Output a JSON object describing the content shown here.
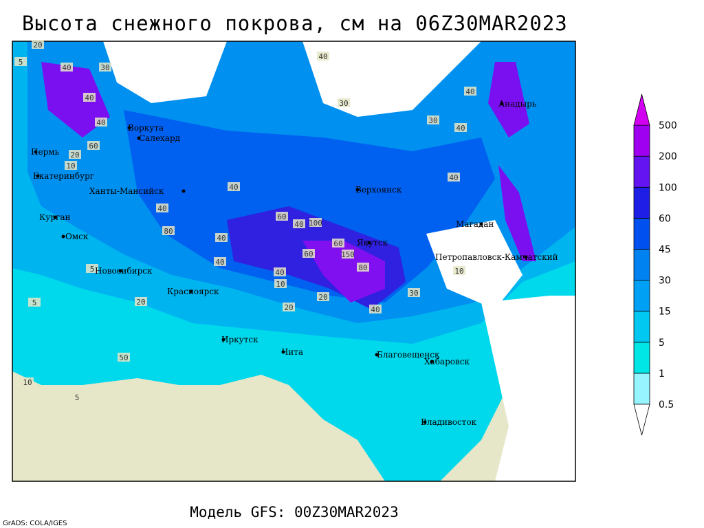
{
  "header": {
    "title": "Высота снежного покрова, см на 06Z30MAR2023"
  },
  "footer": {
    "model": "Модель GFS: 00Z30MAR2023",
    "credit": "GrADS: COLA/IGES"
  },
  "legend": {
    "levels": [
      0.5,
      1,
      5,
      15,
      30,
      45,
      60,
      100,
      200,
      500
    ],
    "colors": [
      "#ffffff",
      "#96f5ff",
      "#00e6e6",
      "#00c8f0",
      "#00a0f5",
      "#0082f0",
      "#0050f0",
      "#1e1ee6",
      "#6414f0",
      "#a000f0",
      "#d200f0"
    ]
  },
  "map": {
    "cities": [
      "Воркута",
      "Салехард",
      "Пермь",
      "Екатеринбург",
      "Ханты-Мансийск",
      "Курган",
      "Омск",
      "Новосибирск",
      "Красноярск",
      "Иркутск",
      "Чита",
      "Верхоянск",
      "Якутск",
      "Магадан",
      "Анадырь",
      "Петропавловск-Камчатский",
      "Благовещенск",
      "Хабаровск",
      "Владивосток"
    ],
    "contour_labels": [
      20,
      40,
      30,
      40,
      20,
      60,
      40,
      10,
      5,
      30,
      40,
      60,
      40,
      40,
      40,
      80,
      60,
      40,
      100,
      150,
      80,
      60,
      40,
      20,
      20,
      10,
      5,
      40,
      30,
      40,
      40,
      10,
      5,
      50,
      30,
      40,
      20,
      10,
      5,
      40
    ]
  }
}
